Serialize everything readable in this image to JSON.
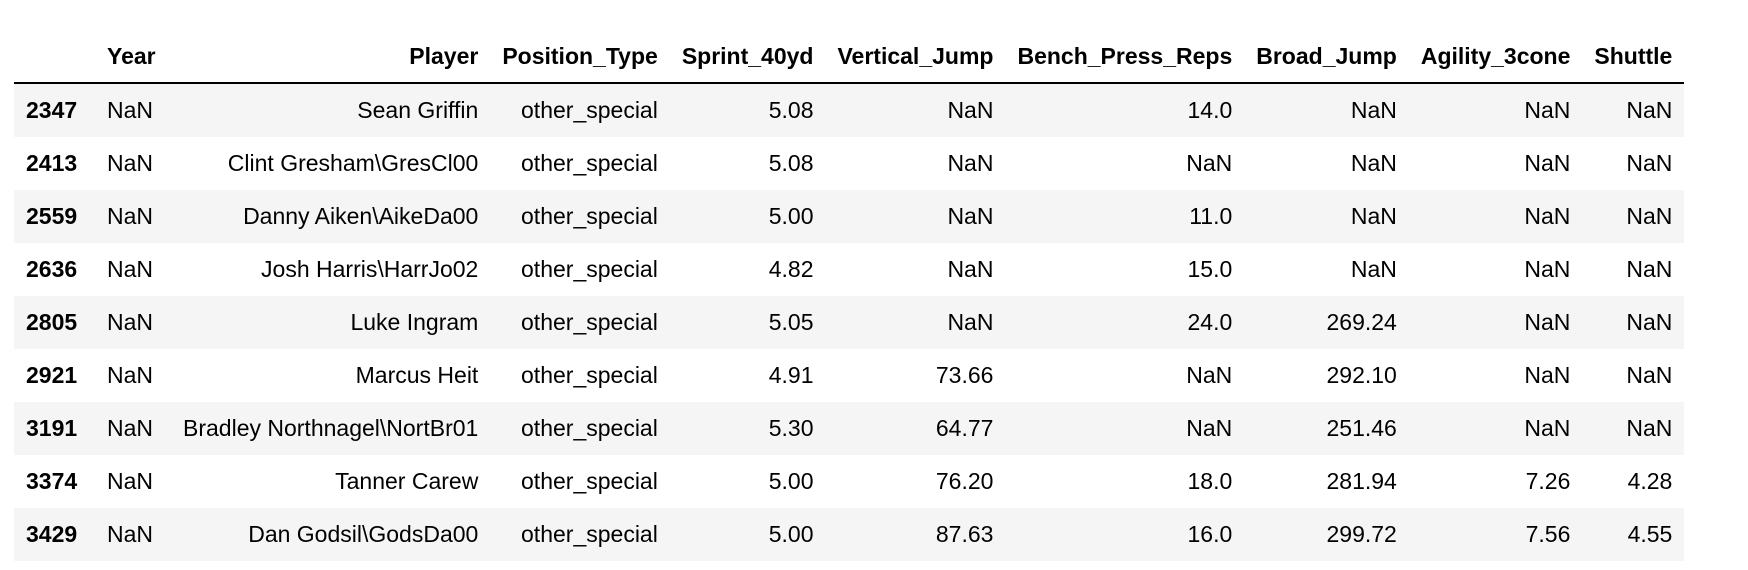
{
  "table": {
    "headers": {
      "index": "",
      "year": "Year",
      "player": "Player",
      "position_type": "Position_Type",
      "sprint": "Sprint_40yd",
      "vertical": "Vertical_Jump",
      "bench": "Bench_Press_Reps",
      "broad": "Broad_Jump",
      "agility": "Agility_3cone",
      "shuttle": "Shuttle"
    },
    "rows": [
      {
        "index": "2347",
        "year": "NaN",
        "player": "Sean Griffin",
        "position_type": "other_special",
        "sprint": "5.08",
        "vertical": "NaN",
        "bench": "14.0",
        "broad": "NaN",
        "agility": "NaN",
        "shuttle": "NaN"
      },
      {
        "index": "2413",
        "year": "NaN",
        "player": "Clint Gresham\\GresCl00",
        "position_type": "other_special",
        "sprint": "5.08",
        "vertical": "NaN",
        "bench": "NaN",
        "broad": "NaN",
        "agility": "NaN",
        "shuttle": "NaN"
      },
      {
        "index": "2559",
        "year": "NaN",
        "player": "Danny Aiken\\AikeDa00",
        "position_type": "other_special",
        "sprint": "5.00",
        "vertical": "NaN",
        "bench": "11.0",
        "broad": "NaN",
        "agility": "NaN",
        "shuttle": "NaN"
      },
      {
        "index": "2636",
        "year": "NaN",
        "player": "Josh Harris\\HarrJo02",
        "position_type": "other_special",
        "sprint": "4.82",
        "vertical": "NaN",
        "bench": "15.0",
        "broad": "NaN",
        "agility": "NaN",
        "shuttle": "NaN"
      },
      {
        "index": "2805",
        "year": "NaN",
        "player": "Luke Ingram",
        "position_type": "other_special",
        "sprint": "5.05",
        "vertical": "NaN",
        "bench": "24.0",
        "broad": "269.24",
        "agility": "NaN",
        "shuttle": "NaN"
      },
      {
        "index": "2921",
        "year": "NaN",
        "player": "Marcus Heit",
        "position_type": "other_special",
        "sprint": "4.91",
        "vertical": "73.66",
        "bench": "NaN",
        "broad": "292.10",
        "agility": "NaN",
        "shuttle": "NaN"
      },
      {
        "index": "3191",
        "year": "NaN",
        "player": "Bradley Northnagel\\NortBr01",
        "position_type": "other_special",
        "sprint": "5.30",
        "vertical": "64.77",
        "bench": "NaN",
        "broad": "251.46",
        "agility": "NaN",
        "shuttle": "NaN"
      },
      {
        "index": "3374",
        "year": "NaN",
        "player": "Tanner Carew",
        "position_type": "other_special",
        "sprint": "5.00",
        "vertical": "76.20",
        "bench": "18.0",
        "broad": "281.94",
        "agility": "7.26",
        "shuttle": "4.28"
      },
      {
        "index": "3429",
        "year": "NaN",
        "player": "Dan Godsil\\GodsDa00",
        "position_type": "other_special",
        "sprint": "5.00",
        "vertical": "87.63",
        "bench": "16.0",
        "broad": "299.72",
        "agility": "7.56",
        "shuttle": "4.55"
      }
    ]
  }
}
